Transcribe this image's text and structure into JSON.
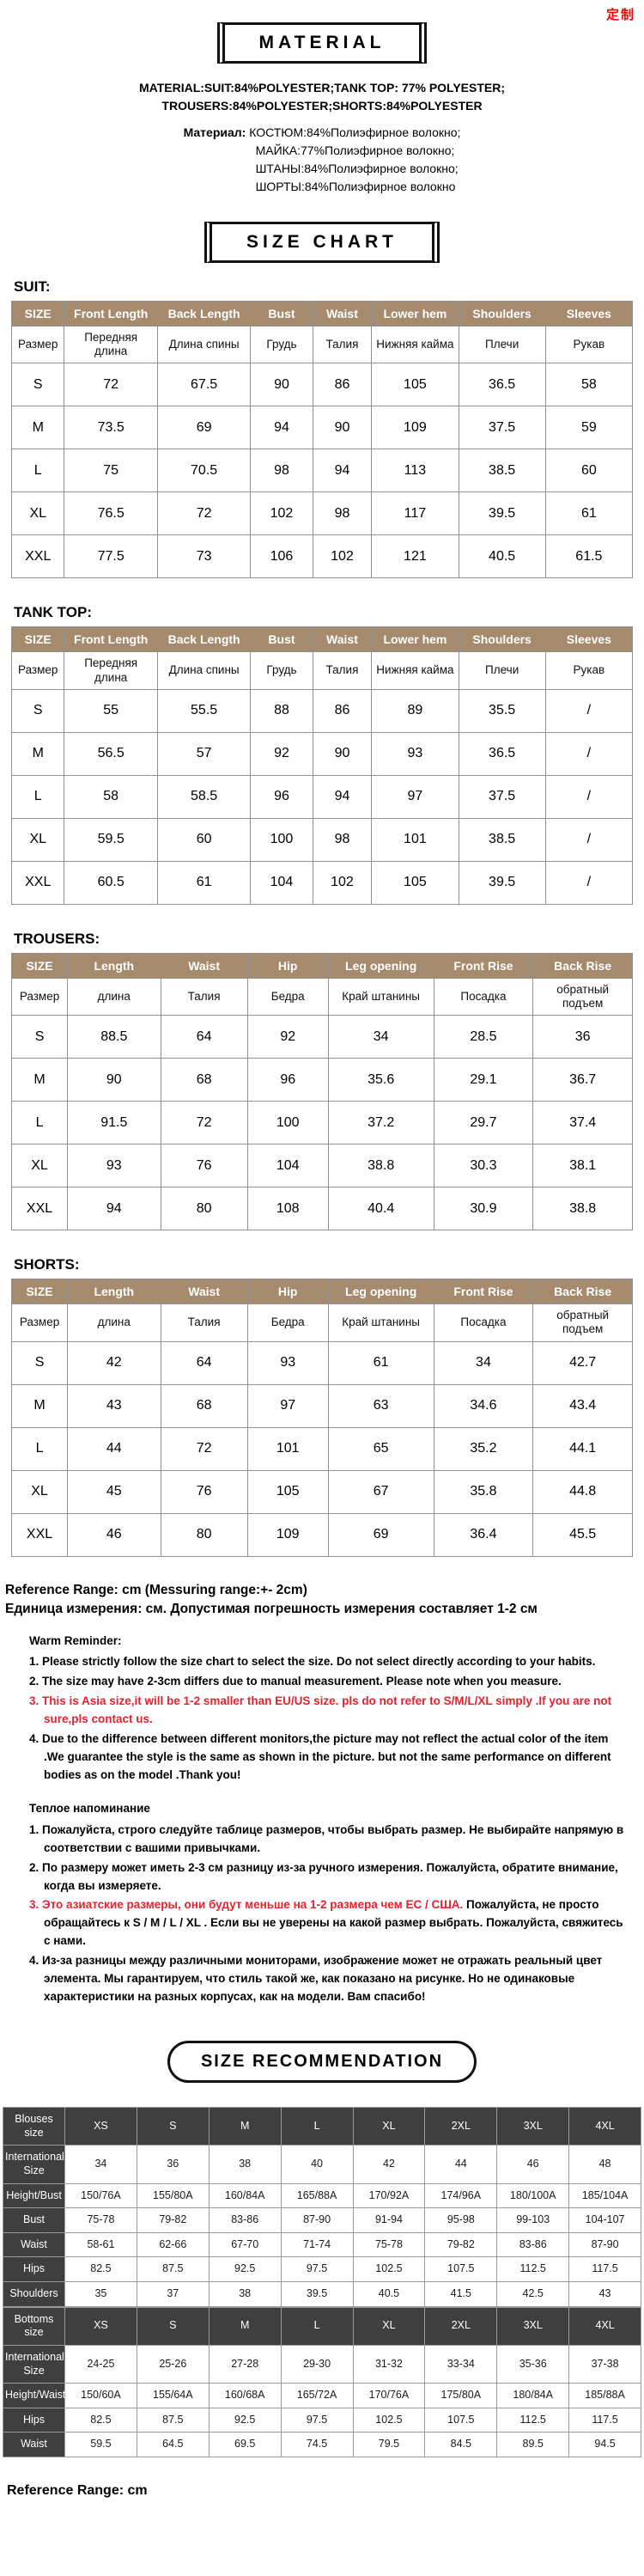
{
  "watermark": "定制",
  "colors": {
    "table_header_bg": "#a68a6d",
    "reco_header_bg": "#3f3f3f",
    "alert_red": "#e8212e"
  },
  "material": {
    "title": "MATERIAL",
    "en_bold": "MATERIAL:",
    "en_line1": "SUIT:84%POLYESTER;TANK TOP: 77% POLYESTER;",
    "en_line2": "TROUSERS:84%POLYESTER;SHORTS:84%POLYESTER",
    "ru_bold": "Материал:",
    "ru_line1": "КОСТЮМ:84%Полиэфирное волокно;",
    "ru_line2": "МАЙКА:77%Полиэфирное волокно;",
    "ru_line3": "ШТАНЫ:84%Полиэфирное волокно;",
    "ru_line4": "ШОРТЫ:84%Полиэфирное волокно"
  },
  "size_chart": {
    "title": "SIZE CHART",
    "tables": [
      {
        "label": "SUIT:",
        "headers": [
          "SIZE",
          "Front Length",
          "Back Length",
          "Bust",
          "Waist",
          "Lower hem",
          "Shoulders",
          "Sleeves"
        ],
        "subheaders": [
          "Размер",
          "Передняя длина",
          "Длина спины",
          "Грудь",
          "Талия",
          "Нижняя кайма",
          "Плечи",
          "Рукав"
        ],
        "rows": [
          [
            "S",
            "72",
            "67.5",
            "90",
            "86",
            "105",
            "36.5",
            "58"
          ],
          [
            "M",
            "73.5",
            "69",
            "94",
            "90",
            "109",
            "37.5",
            "59"
          ],
          [
            "L",
            "75",
            "70.5",
            "98",
            "94",
            "113",
            "38.5",
            "60"
          ],
          [
            "XL",
            "76.5",
            "72",
            "102",
            "98",
            "117",
            "39.5",
            "61"
          ],
          [
            "XXL",
            "77.5",
            "73",
            "106",
            "102",
            "121",
            "40.5",
            "61.5"
          ]
        ]
      },
      {
        "label": "TANK TOP:",
        "headers": [
          "SIZE",
          "Front Length",
          "Back Length",
          "Bust",
          "Waist",
          "Lower hem",
          "Shoulders",
          "Sleeves"
        ],
        "subheaders": [
          "Размер",
          "Передняя длина",
          "Длина спины",
          "Грудь",
          "Талия",
          "Нижняя кайма",
          "Плечи",
          "Рукав"
        ],
        "rows": [
          [
            "S",
            "55",
            "55.5",
            "88",
            "86",
            "89",
            "35.5",
            "/"
          ],
          [
            "M",
            "56.5",
            "57",
            "92",
            "90",
            "93",
            "36.5",
            "/"
          ],
          [
            "L",
            "58",
            "58.5",
            "96",
            "94",
            "97",
            "37.5",
            "/"
          ],
          [
            "XL",
            "59.5",
            "60",
            "100",
            "98",
            "101",
            "38.5",
            "/"
          ],
          [
            "XXL",
            "60.5",
            "61",
            "104",
            "102",
            "105",
            "39.5",
            "/"
          ]
        ]
      },
      {
        "label": "TROUSERS:",
        "headers": [
          "SIZE",
          "Length",
          "Waist",
          "Hip",
          "Leg opening",
          "Front Rise",
          "Back Rise"
        ],
        "subheaders": [
          "Размер",
          "длина",
          "Талия",
          "Бедра",
          "Край штанины",
          "Посадка",
          "обратный подъем"
        ],
        "rows": [
          [
            "S",
            "88.5",
            "64",
            "92",
            "34",
            "28.5",
            "36"
          ],
          [
            "M",
            "90",
            "68",
            "96",
            "35.6",
            "29.1",
            "36.7"
          ],
          [
            "L",
            "91.5",
            "72",
            "100",
            "37.2",
            "29.7",
            "37.4"
          ],
          [
            "XL",
            "93",
            "76",
            "104",
            "38.8",
            "30.3",
            "38.1"
          ],
          [
            "XXL",
            "94",
            "80",
            "108",
            "40.4",
            "30.9",
            "38.8"
          ]
        ]
      },
      {
        "label": "SHORTS:",
        "headers": [
          "SIZE",
          "Length",
          "Waist",
          "Hip",
          "Leg opening",
          "Front Rise",
          "Back Rise"
        ],
        "subheaders": [
          "Размер",
          "длина",
          "Талия",
          "Бедра",
          "Край штанины",
          "Посадка",
          "обратный подъем"
        ],
        "rows": [
          [
            "S",
            "42",
            "64",
            "93",
            "61",
            "34",
            "42.7"
          ],
          [
            "M",
            "43",
            "68",
            "97",
            "63",
            "34.6",
            "43.4"
          ],
          [
            "L",
            "44",
            "72",
            "101",
            "65",
            "35.2",
            "44.1"
          ],
          [
            "XL",
            "45",
            "76",
            "105",
            "67",
            "35.8",
            "44.8"
          ],
          [
            "XXL",
            "46",
            "80",
            "109",
            "69",
            "36.4",
            "45.5"
          ]
        ]
      }
    ]
  },
  "reference": {
    "en": "Reference Range: cm (Messuring range:+- 2cm)",
    "ru": "Единица измерения: см. Допустимая погрешность измерения составляет 1-2 см"
  },
  "warm_reminder_en": {
    "title": "Warm Reminder:",
    "items": [
      {
        "text": "1. Please strictly follow the size chart to select the size. Do not select directly according to your habits.",
        "red": false
      },
      {
        "text": "2. The size may have 2-3cm differs due to manual measurement. Please note when you measure.",
        "red": false
      },
      {
        "text": "3. This is Asia size,it will be 1-2 smaller than EU/US size. pls do not refer to S/M/L/XL simply .If you are not sure,pls contact us.",
        "red": true
      },
      {
        "text": "4. Due to the difference between different monitors,the picture may not reflect the actual color of the item .We guarantee the style is the same as shown in the picture. but not the same performance on different bodies as on the model .Thank you!",
        "red": false
      }
    ]
  },
  "warm_reminder_ru": {
    "title": "Теплое напоминание",
    "items": [
      {
        "text": "1. Пожалуйста, строго следуйте таблице размеров, чтобы выбрать размер. Не выбирайте напрямую в соответствии с вашими привычками.",
        "red": false
      },
      {
        "text": "2. По размеру может иметь 2-3 см разницу из-за ручного измерения. Пожалуйста, обратите внимание, когда вы измеряете.",
        "red": false
      },
      {
        "red_text": "3. Это азиатские размеры, они будут меньше на 1-2 размера чем ЕС / США.",
        "text": "Пожалуйста, не просто обращайтесь к S / M / L / XL . Если вы не уверены на какой размер выбрать. Пожалуйста, свяжитесь с нами.",
        "red": false
      },
      {
        "text": "4. Из-за разницы между различными мониторами, изображение может не отражать реальный цвет элемента. Мы гарантируем, что стиль такой же, как показано на рисунке. Но не одинаковые характеристики на разных корпусах, как на модели. Вам спасибо!",
        "red": false
      }
    ]
  },
  "size_recommendation": {
    "title": "SIZE RECOMMENDATION",
    "tables": [
      {
        "rows": [
          {
            "label": "Blouses size",
            "header": true,
            "values": [
              "XS",
              "S",
              "M",
              "L",
              "XL",
              "2XL",
              "3XL",
              "4XL"
            ]
          },
          {
            "label": "International Size",
            "header": false,
            "values": [
              "34",
              "36",
              "38",
              "40",
              "42",
              "44",
              "46",
              "48"
            ]
          },
          {
            "label": "Height/Bust",
            "header": false,
            "values": [
              "150/76A",
              "155/80A",
              "160/84A",
              "165/88A",
              "170/92A",
              "174/96A",
              "180/100A",
              "185/104A"
            ]
          },
          {
            "label": "Bust",
            "header": false,
            "values": [
              "75-78",
              "79-82",
              "83-86",
              "87-90",
              "91-94",
              "95-98",
              "99-103",
              "104-107"
            ]
          },
          {
            "label": "Waist",
            "header": false,
            "values": [
              "58-61",
              "62-66",
              "67-70",
              "71-74",
              "75-78",
              "79-82",
              "83-86",
              "87-90"
            ]
          },
          {
            "label": "Hips",
            "header": false,
            "values": [
              "82.5",
              "87.5",
              "92.5",
              "97.5",
              "102.5",
              "107.5",
              "112.5",
              "117.5"
            ]
          },
          {
            "label": "Shoulders",
            "header": false,
            "values": [
              "35",
              "37",
              "38",
              "39.5",
              "40.5",
              "41.5",
              "42.5",
              "43"
            ]
          }
        ]
      },
      {
        "rows": [
          {
            "label": "Bottoms size",
            "header": true,
            "values": [
              "XS",
              "S",
              "M",
              "L",
              "XL",
              "2XL",
              "3XL",
              "4XL"
            ]
          },
          {
            "label": "International Size",
            "header": false,
            "values": [
              "24-25",
              "25-26",
              "27-28",
              "29-30",
              "31-32",
              "33-34",
              "35-36",
              "37-38"
            ]
          },
          {
            "label": "Height/Waist",
            "header": false,
            "values": [
              "150/60A",
              "155/64A",
              "160/68A",
              "165/72A",
              "170/76A",
              "175/80A",
              "180/84A",
              "185/88A"
            ]
          },
          {
            "label": "Hips",
            "header": false,
            "values": [
              "82.5",
              "87.5",
              "92.5",
              "97.5",
              "102.5",
              "107.5",
              "112.5",
              "117.5"
            ]
          },
          {
            "label": "Waist",
            "header": false,
            "values": [
              "59.5",
              "64.5",
              "69.5",
              "74.5",
              "79.5",
              "84.5",
              "89.5",
              "94.5"
            ]
          }
        ]
      }
    ]
  },
  "footer_reference": "Reference Range: cm"
}
